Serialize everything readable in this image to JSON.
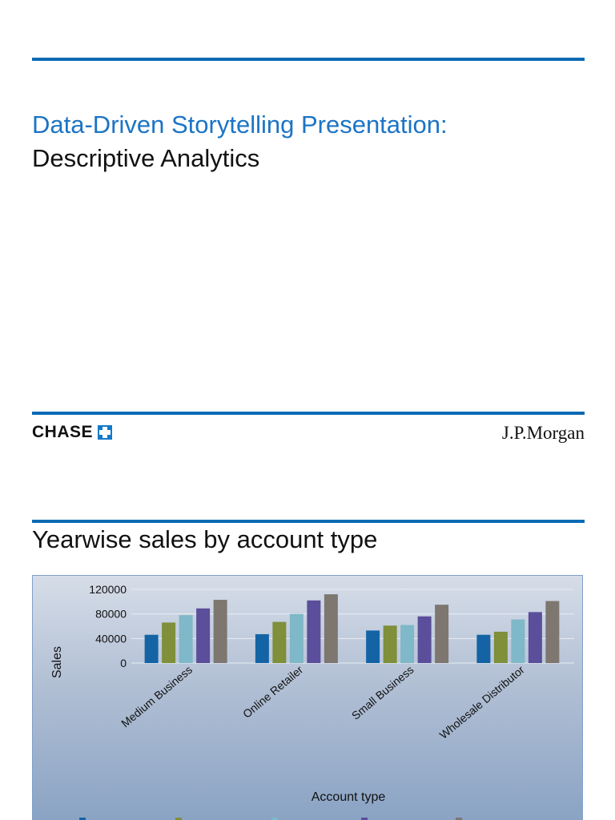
{
  "slide1": {
    "title_line1": "Data-Driven Storytelling Presentation:",
    "title_line2": "Descriptive Analytics",
    "brand_left": "CHASE",
    "brand_right": "J.P.Morgan"
  },
  "slide2": {
    "title": "Yearwise sales by account type"
  },
  "colors": {
    "accent": "#0a6ab4",
    "series": [
      "#1464a5",
      "#7f8f3a",
      "#7fb8c8",
      "#5b4e9a",
      "#7d7770"
    ]
  },
  "chart_data": {
    "type": "bar",
    "categories": [
      "Medium Business",
      "Online Retailer",
      "Small Business",
      "Wholesale Distributor"
    ],
    "series": [
      {
        "values": [
          46000,
          47000,
          53000,
          46000
        ]
      },
      {
        "values": [
          66000,
          67000,
          61000,
          51000
        ]
      },
      {
        "values": [
          78000,
          80000,
          62000,
          71000
        ]
      },
      {
        "values": [
          89000,
          102000,
          76000,
          83000
        ]
      },
      {
        "values": [
          103000,
          112000,
          95000,
          101000
        ]
      }
    ],
    "xlabel": "Account type",
    "ylabel": "Sales",
    "ylim": [
      0,
      120000
    ],
    "yticks": [
      "0",
      "40000",
      "80000",
      "120000"
    ],
    "grid": true,
    "legend": "bottom"
  }
}
